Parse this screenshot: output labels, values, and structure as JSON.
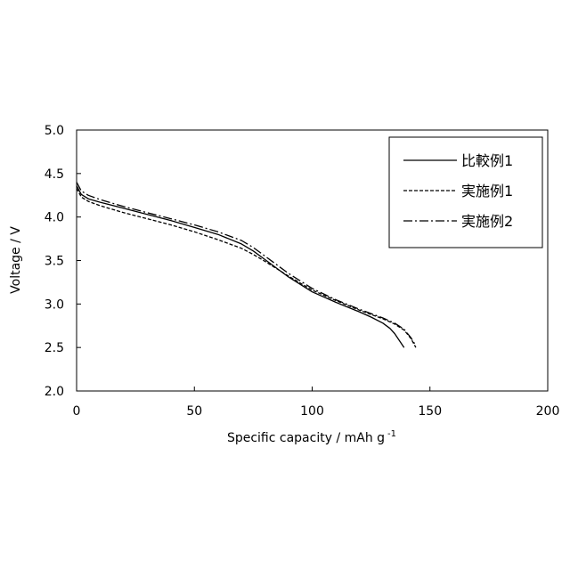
{
  "chart_data": {
    "type": "line",
    "title": "",
    "xlabel": "Specific capacity / mAh g",
    "xlabel_sup": "-1",
    "ylabel": "Voltage / V",
    "xlim": [
      0,
      200
    ],
    "ylim": [
      2.0,
      5.0
    ],
    "xticks": [
      "0",
      "50",
      "100",
      "150",
      "200"
    ],
    "yticks": [
      "2.0",
      "2.5",
      "3.0",
      "3.5",
      "4.0",
      "4.5",
      "5.0"
    ],
    "grid": false,
    "legend_position": "top-right",
    "series": [
      {
        "name": "比較例1",
        "style": "solid",
        "color": "#000000",
        "x": [
          0,
          2,
          5,
          10,
          20,
          30,
          40,
          50,
          60,
          70,
          75,
          80,
          90,
          100,
          110,
          120,
          125,
          130,
          133,
          135,
          137,
          139
        ],
        "y": [
          4.36,
          4.26,
          4.21,
          4.17,
          4.1,
          4.03,
          3.96,
          3.88,
          3.8,
          3.69,
          3.61,
          3.51,
          3.31,
          3.14,
          3.02,
          2.91,
          2.85,
          2.78,
          2.72,
          2.66,
          2.58,
          2.5
        ]
      },
      {
        "name": "実施例1",
        "style": "dashed",
        "color": "#000000",
        "x": [
          0,
          2,
          5,
          10,
          20,
          30,
          40,
          50,
          60,
          70,
          75,
          80,
          90,
          100,
          110,
          120,
          125,
          130,
          135,
          139,
          142,
          144
        ],
        "y": [
          4.33,
          4.23,
          4.18,
          4.13,
          4.05,
          3.98,
          3.91,
          3.83,
          3.74,
          3.64,
          3.57,
          3.49,
          3.32,
          3.16,
          3.04,
          2.93,
          2.88,
          2.83,
          2.77,
          2.7,
          2.6,
          2.5
        ]
      },
      {
        "name": "実施例2",
        "style": "dashdot",
        "color": "#000000",
        "x": [
          0,
          2,
          5,
          10,
          20,
          30,
          40,
          50,
          60,
          70,
          75,
          80,
          90,
          100,
          110,
          120,
          125,
          130,
          135,
          139,
          142,
          144
        ],
        "y": [
          4.4,
          4.3,
          4.25,
          4.2,
          4.12,
          4.05,
          3.98,
          3.91,
          3.83,
          3.73,
          3.65,
          3.55,
          3.35,
          3.18,
          3.05,
          2.94,
          2.89,
          2.84,
          2.78,
          2.71,
          2.61,
          2.52
        ]
      }
    ]
  }
}
